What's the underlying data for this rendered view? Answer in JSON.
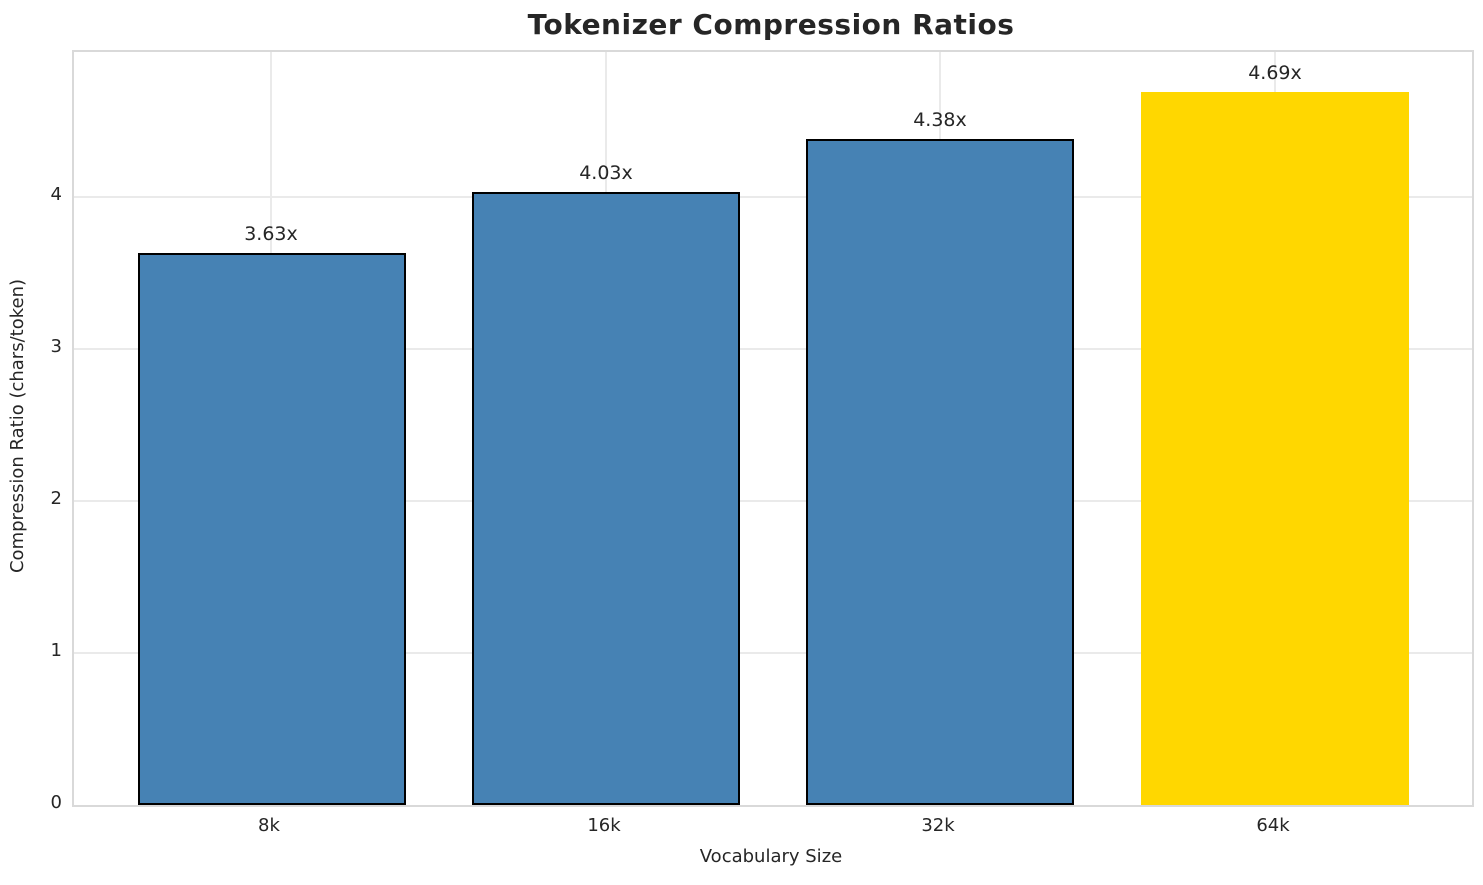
{
  "chart_data": {
    "type": "bar",
    "title": "Tokenizer Compression Ratios",
    "xlabel": "Vocabulary Size",
    "ylabel": "Compression Ratio (chars/token)",
    "categories": [
      "8k",
      "16k",
      "32k",
      "64k"
    ],
    "values": [
      3.63,
      4.03,
      4.38,
      4.69
    ],
    "bar_labels": [
      "3.63x",
      "4.03x",
      "4.38x",
      "4.69x"
    ],
    "bar_colors": [
      "#4682B4",
      "#4682B4",
      "#4682B4",
      "#FFD700"
    ],
    "bar_edge_colors": [
      "#000000",
      "#000000",
      "#000000",
      "none"
    ],
    "highlight_index": 3,
    "yticks": [
      0,
      1,
      2,
      3,
      4
    ],
    "ylim": [
      0,
      4.95
    ],
    "grid": true,
    "grid_color": "#eaeaea",
    "frame_color": "#d9d9d9",
    "text_color": "#262626",
    "legend": "none"
  }
}
